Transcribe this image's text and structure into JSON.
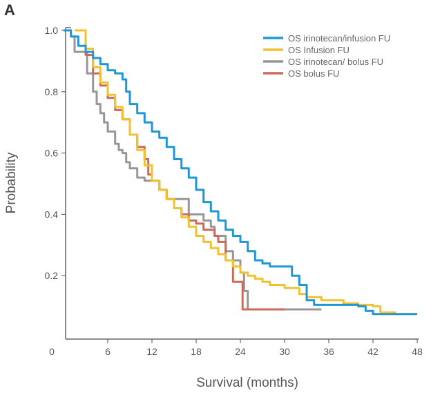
{
  "panel_label": "A",
  "chart_data": {
    "type": "line",
    "subtype": "kaplan-meier-step",
    "title": "",
    "xlabel": "Survival (months)",
    "ylabel": "Probability",
    "xlim": [
      0,
      48
    ],
    "ylim": [
      0,
      1.0
    ],
    "xticks": [
      0,
      6,
      12,
      18,
      24,
      30,
      36,
      42,
      48
    ],
    "xtick_labels": [
      "0",
      "6",
      "12",
      "18",
      "24",
      "30",
      "36",
      "42",
      "48"
    ],
    "yticks": [
      0.2,
      0.4,
      0.6,
      0.8,
      1.0
    ],
    "ytick_labels": [
      "0.2",
      "0.4",
      "0.6",
      "0.8",
      "1.0"
    ],
    "grid": false,
    "legend_position": "top-right",
    "series": [
      {
        "name": "OS irinotecan/infusion FU",
        "color": "#1f97d4",
        "points": [
          [
            0,
            1
          ],
          [
            1,
            0.98
          ],
          [
            2,
            0.95
          ],
          [
            3,
            0.93
          ],
          [
            4,
            0.91
          ],
          [
            5,
            0.89
          ],
          [
            6,
            0.87
          ],
          [
            7,
            0.86
          ],
          [
            8,
            0.84
          ],
          [
            8.5,
            0.8
          ],
          [
            9,
            0.76
          ],
          [
            10,
            0.73
          ],
          [
            11,
            0.7
          ],
          [
            12,
            0.67
          ],
          [
            13,
            0.65
          ],
          [
            14,
            0.62
          ],
          [
            15,
            0.58
          ],
          [
            16,
            0.55
          ],
          [
            17,
            0.52
          ],
          [
            18,
            0.48
          ],
          [
            19,
            0.44
          ],
          [
            20,
            0.41
          ],
          [
            21,
            0.38
          ],
          [
            22,
            0.35
          ],
          [
            23,
            0.33
          ],
          [
            24,
            0.31
          ],
          [
            25,
            0.28
          ],
          [
            26,
            0.25
          ],
          [
            27,
            0.24
          ],
          [
            28,
            0.23
          ],
          [
            30,
            0.23
          ],
          [
            31,
            0.2
          ],
          [
            32,
            0.17
          ],
          [
            33,
            0.12
          ],
          [
            34,
            0.105
          ],
          [
            40,
            0.1
          ],
          [
            41,
            0.085
          ],
          [
            42,
            0.075
          ],
          [
            48,
            0.075
          ]
        ]
      },
      {
        "name": "OS Infusion FU",
        "color": "#f2c12e",
        "points": [
          [
            1.5,
            1
          ],
          [
            3,
            0.94
          ],
          [
            4,
            0.88
          ],
          [
            5,
            0.83
          ],
          [
            6,
            0.79
          ],
          [
            7,
            0.75
          ],
          [
            8,
            0.71
          ],
          [
            9,
            0.66
          ],
          [
            10,
            0.61
          ],
          [
            11,
            0.56
          ],
          [
            12,
            0.51
          ],
          [
            13,
            0.48
          ],
          [
            14,
            0.45
          ],
          [
            15,
            0.42
          ],
          [
            16,
            0.39
          ],
          [
            17,
            0.36
          ],
          [
            18,
            0.33
          ],
          [
            19,
            0.31
          ],
          [
            20,
            0.29
          ],
          [
            21,
            0.27
          ],
          [
            22,
            0.25
          ],
          [
            23,
            0.23
          ],
          [
            24,
            0.21
          ],
          [
            25,
            0.2
          ],
          [
            26,
            0.19
          ],
          [
            27,
            0.18
          ],
          [
            28,
            0.17
          ],
          [
            30,
            0.16
          ],
          [
            32,
            0.14
          ],
          [
            33,
            0.13
          ],
          [
            35,
            0.12
          ],
          [
            38,
            0.11
          ],
          [
            40,
            0.105
          ],
          [
            42,
            0.1
          ],
          [
            43,
            0.08
          ],
          [
            45,
            0.075
          ],
          [
            48,
            0.075
          ]
        ]
      },
      {
        "name": "OS irinotecan/ bolus FU",
        "color": "#9a9696",
        "points": [
          [
            0,
            1
          ],
          [
            1,
            0.98
          ],
          [
            1.5,
            0.93
          ],
          [
            3,
            0.93
          ],
          [
            3.2,
            0.86
          ],
          [
            4,
            0.8
          ],
          [
            4.5,
            0.76
          ],
          [
            5,
            0.73
          ],
          [
            5.5,
            0.7
          ],
          [
            6,
            0.67
          ],
          [
            7,
            0.63
          ],
          [
            7.5,
            0.61
          ],
          [
            8,
            0.6
          ],
          [
            8.5,
            0.57
          ],
          [
            9,
            0.55
          ],
          [
            10,
            0.52
          ],
          [
            11,
            0.51
          ],
          [
            12,
            0.51
          ],
          [
            13,
            0.48
          ],
          [
            14,
            0.45
          ],
          [
            16,
            0.45
          ],
          [
            17,
            0.4
          ],
          [
            18,
            0.4
          ],
          [
            19,
            0.38
          ],
          [
            20,
            0.36
          ],
          [
            20.5,
            0.33
          ],
          [
            21.5,
            0.33
          ],
          [
            22,
            0.28
          ],
          [
            23,
            0.25
          ],
          [
            24,
            0.21
          ],
          [
            24.5,
            0.15
          ],
          [
            25,
            0.09
          ],
          [
            35,
            0.09
          ]
        ]
      },
      {
        "name": "OS bolus FU",
        "color": "#cc6a5a",
        "points": [
          [
            1.5,
            1
          ],
          [
            3,
            0.92
          ],
          [
            4,
            0.86
          ],
          [
            5,
            0.82
          ],
          [
            6,
            0.78
          ],
          [
            7,
            0.74
          ],
          [
            8,
            0.71
          ],
          [
            9,
            0.66
          ],
          [
            10,
            0.62
          ],
          [
            11,
            0.58
          ],
          [
            11.5,
            0.53
          ],
          [
            12,
            0.51
          ],
          [
            13,
            0.48
          ],
          [
            14,
            0.45
          ],
          [
            15,
            0.42
          ],
          [
            16,
            0.4
          ],
          [
            17,
            0.38
          ],
          [
            18,
            0.37
          ],
          [
            19,
            0.35
          ],
          [
            20.5,
            0.33
          ],
          [
            21,
            0.31
          ],
          [
            22,
            0.25
          ],
          [
            22.5,
            0.25
          ],
          [
            23,
            0.18
          ],
          [
            24,
            0.18
          ],
          [
            24.3,
            0.09
          ],
          [
            30,
            0.09
          ]
        ]
      }
    ]
  }
}
